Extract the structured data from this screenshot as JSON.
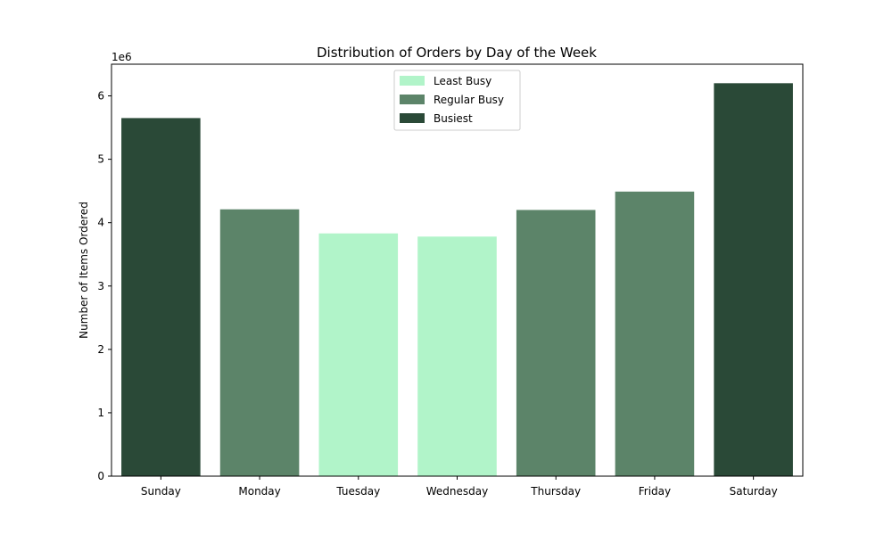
{
  "chart_data": {
    "type": "bar",
    "title": "Distribution of Orders by Day of the Week",
    "xlabel": "",
    "ylabel": "Number of Items Ordered",
    "scale_label": "1e6",
    "categories": [
      "Sunday",
      "Monday",
      "Tuesday",
      "Wednesday",
      "Thursday",
      "Friday",
      "Saturday"
    ],
    "values": [
      5650000,
      4210000,
      3830000,
      3780000,
      4200000,
      4490000,
      6200000
    ],
    "value_groups": [
      "Busiest",
      "Regular Busy",
      "Least Busy",
      "Least Busy",
      "Regular Busy",
      "Regular Busy",
      "Busiest"
    ],
    "ylim": [
      0,
      6500000
    ],
    "yticks": [
      0,
      1000000,
      2000000,
      3000000,
      4000000,
      5000000,
      6000000
    ],
    "ytick_labels": [
      "0",
      "1",
      "2",
      "3",
      "4",
      "5",
      "6"
    ],
    "grid": false,
    "legend": {
      "position": "top-center",
      "entries": [
        {
          "label": "Least Busy",
          "color": "#b1f4c9"
        },
        {
          "label": "Regular Busy",
          "color": "#5c8469"
        },
        {
          "label": "Busiest",
          "color": "#2a4937"
        }
      ]
    }
  }
}
